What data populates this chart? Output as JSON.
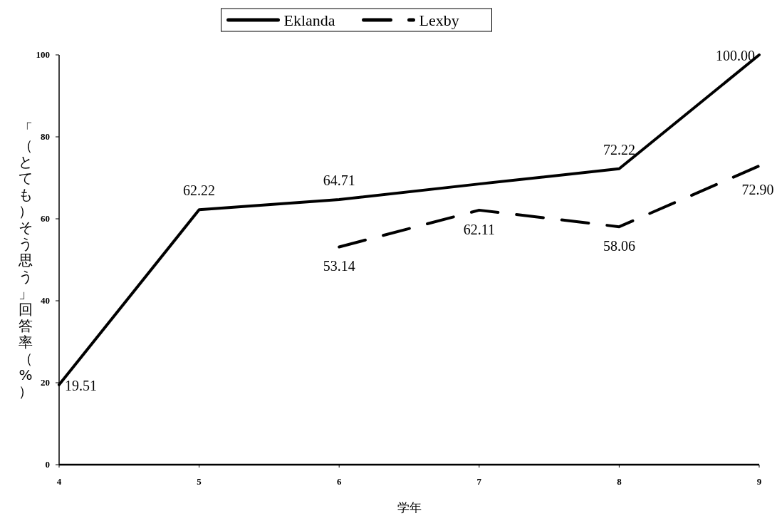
{
  "chart_data": {
    "type": "line",
    "xlabel": "学年",
    "ylabel": "「（とても）そう思う」回答率（%）",
    "x": [
      4,
      5,
      6,
      7,
      8,
      9
    ],
    "xlim": [
      4,
      9
    ],
    "xticks": [
      4,
      5,
      6,
      7,
      8,
      9
    ],
    "ylim": [
      0,
      100
    ],
    "yticks": [
      0,
      20,
      40,
      60,
      80,
      100
    ],
    "grid": false,
    "legend": "top",
    "marker": "none",
    "series": [
      {
        "name": "Eklanda",
        "color": "#000000",
        "line_style": "solid",
        "values": [
          19.51,
          62.22,
          64.71,
          68.5,
          72.22,
          100
        ],
        "value_labels": [
          "19.51",
          "62.22",
          "64.71",
          null,
          "72.22",
          "100.00"
        ]
      },
      {
        "name": "Lexby",
        "color": "#000000",
        "line_style": "dashed",
        "values": [
          null,
          null,
          53.14,
          62.11,
          58.06,
          72.9
        ],
        "value_labels": [
          null,
          null,
          "53.14",
          "62.11",
          "58.06",
          "72.90"
        ]
      }
    ]
  }
}
